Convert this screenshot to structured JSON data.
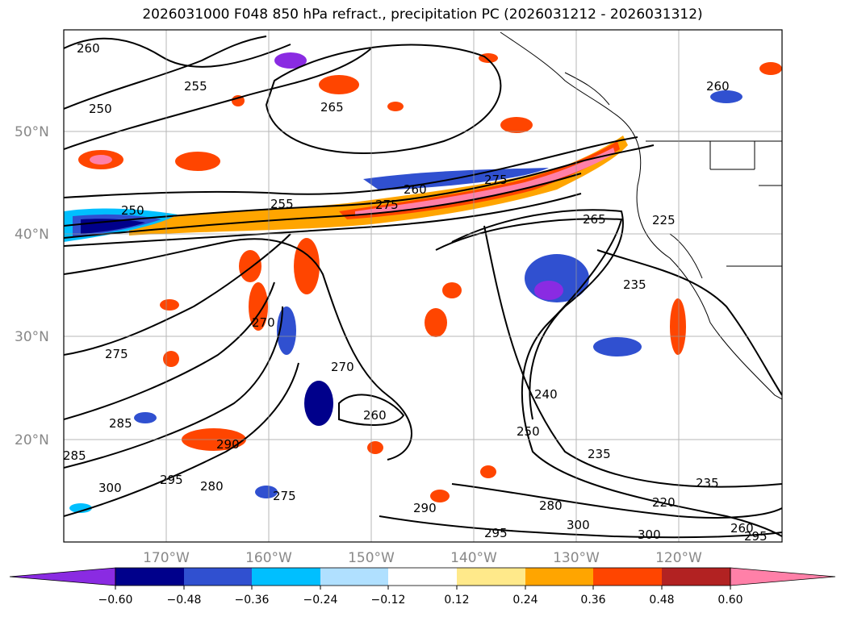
{
  "title": "2026031000 F048 850 hPa refract., precipitation PC (2026031212 - 2026031312)",
  "lat_labels": [
    "50°N",
    "40°N",
    "30°N",
    "20°N"
  ],
  "lon_labels": [
    "170°W",
    "160°W",
    "150°W",
    "140°W",
    "130°W",
    "120°W"
  ],
  "contour_labels": [
    "260",
    "255",
    "250",
    "265",
    "250",
    "255",
    "275",
    "260",
    "275",
    "265",
    "260",
    "225",
    "235",
    "270",
    "275",
    "270",
    "260",
    "240",
    "250",
    "235",
    "285",
    "285",
    "290",
    "295",
    "300",
    "280",
    "275",
    "290",
    "280",
    "300",
    "295",
    "235",
    "220",
    "300",
    "260",
    "295"
  ],
  "colorbar": {
    "ticks": [
      "−0.60",
      "−0.48",
      "−0.36",
      "−0.24",
      "−0.12",
      "0.12",
      "0.24",
      "0.36",
      "0.48",
      "0.60"
    ],
    "colors": [
      "#8a2be2",
      "#00008b",
      "#3050d0",
      "#00bfff",
      "#b0e0ff",
      "#ffffff",
      "#ffe98a",
      "#ffa500",
      "#ff4500",
      "#b22222",
      "#ff80a8"
    ]
  }
}
